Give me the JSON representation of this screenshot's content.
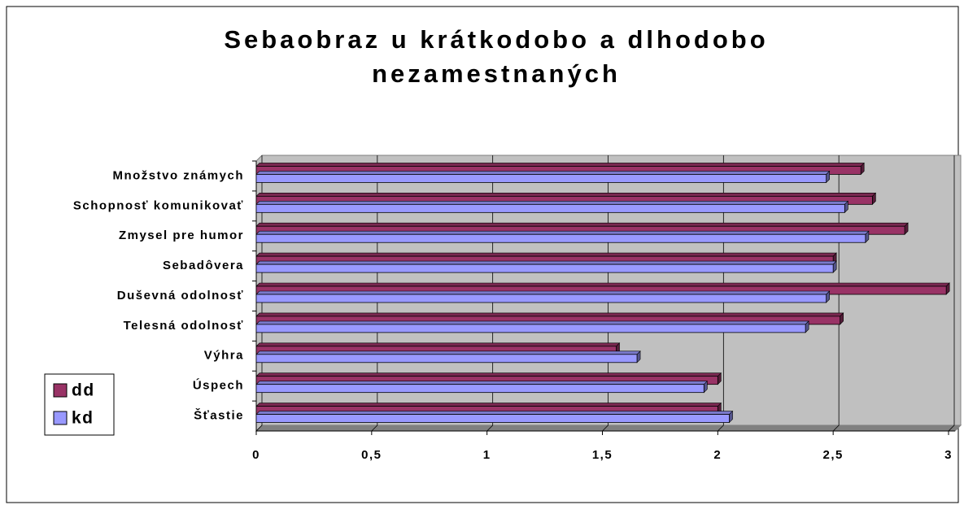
{
  "chart_data": {
    "type": "bar",
    "orientation": "horizontal",
    "title": "Sebaobraz u krátkodobo a dlhodobo nezamestnaných",
    "categories": [
      "Množstvo známych",
      "Schopnosť komunikovať",
      "Zmysel pre humor",
      "Sebadôvera",
      "Duševná odolnosť",
      "Telesná odolnosť",
      "Výhra",
      "Úspech",
      "Šťastie"
    ],
    "series": [
      {
        "name": "dd",
        "color": "#993366",
        "values": [
          2.62,
          2.67,
          2.81,
          2.5,
          2.99,
          2.53,
          1.56,
          2.0,
          2.0
        ]
      },
      {
        "name": "kd",
        "color": "#9999ff",
        "values": [
          2.47,
          2.55,
          2.64,
          2.5,
          2.47,
          2.38,
          1.65,
          1.94,
          2.05
        ]
      }
    ],
    "xlim": [
      0,
      3
    ],
    "xticks": [
      0,
      {
        "value": 0.5,
        "label": "0,5"
      },
      1,
      {
        "value": 1.5,
        "label": "1,5"
      },
      2,
      {
        "value": 2.5,
        "label": "2,5"
      },
      3
    ],
    "grid": true,
    "legend": "left"
  }
}
